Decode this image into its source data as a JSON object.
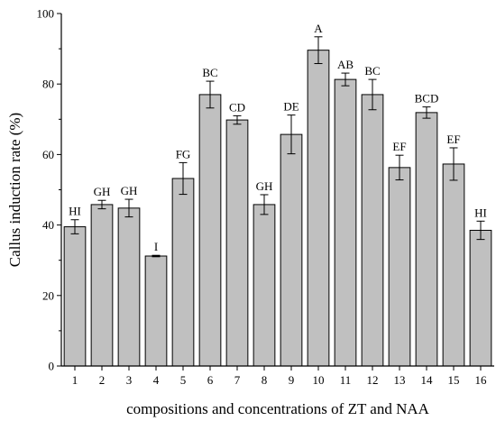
{
  "chart_data": {
    "type": "bar",
    "title": "",
    "xlabel": "compositions and concentrations of ZT and NAA",
    "ylabel": "Callus induction rate (%)",
    "ylim": [
      0,
      100
    ],
    "yticks": [
      0,
      20,
      40,
      60,
      80,
      100
    ],
    "grid": false,
    "categories": [
      "1",
      "2",
      "3",
      "4",
      "5",
      "6",
      "7",
      "8",
      "9",
      "10",
      "11",
      "12",
      "13",
      "14",
      "15",
      "16"
    ],
    "values": [
      39.5,
      45.8,
      44.8,
      31.2,
      53.2,
      77.0,
      69.8,
      45.8,
      65.7,
      89.6,
      81.3,
      77.0,
      56.3,
      71.9,
      57.3,
      38.5
    ],
    "errors": [
      2.0,
      1.2,
      2.5,
      0.2,
      4.5,
      3.8,
      1.2,
      2.8,
      5.5,
      3.8,
      1.8,
      4.3,
      3.5,
      1.6,
      4.6,
      2.6
    ],
    "significance": [
      "HI",
      "GH",
      "GH",
      "I",
      "FG",
      "BC",
      "CD",
      "GH",
      "DE",
      "A",
      "AB",
      "BC",
      "EF",
      "BCD",
      "EF",
      "HI"
    ],
    "colors": {
      "bar_fill": "#c0c0c0",
      "bar_stroke": "#000000",
      "axis": "#000000"
    }
  }
}
